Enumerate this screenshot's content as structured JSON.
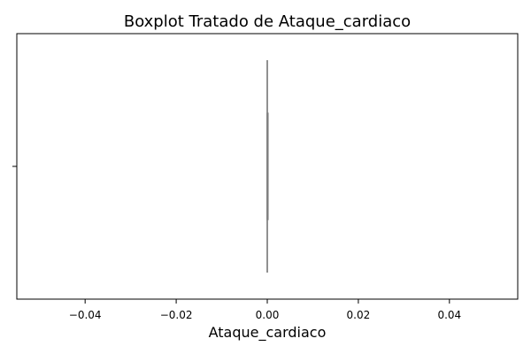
{
  "chart_data": {
    "type": "box",
    "orientation": "horizontal",
    "title": "Boxplot Tratado de Ataque_cardiaco",
    "xlabel": "Ataque_cardiaco",
    "ylabel": "",
    "xlim": [
      -0.055,
      0.055
    ],
    "x_ticks": [
      -0.04,
      -0.02,
      0.0,
      0.02,
      0.04
    ],
    "x_tick_labels": [
      "−0.04",
      "−0.02",
      "0.00",
      "0.02",
      "0.04"
    ],
    "y_tick_labels": [
      ""
    ],
    "grid": false,
    "box_color": "#808080",
    "series": [
      {
        "min": 0.0,
        "q1": 0.0,
        "median": 0.0,
        "q3": 0.0,
        "max": 0.0
      }
    ]
  }
}
